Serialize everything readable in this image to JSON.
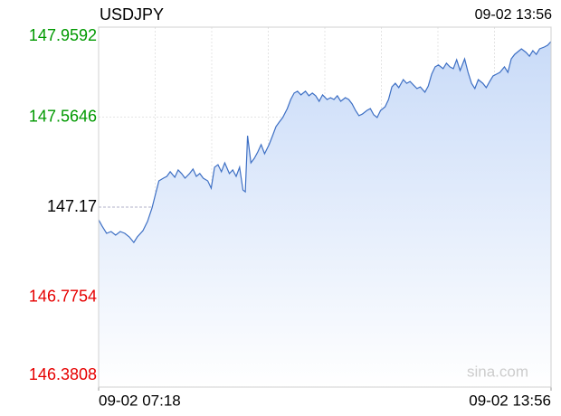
{
  "chart_data": {
    "type": "line",
    "title": "USDJPY",
    "timestamp": "09-02 13:56",
    "watermark": "sina.com",
    "xlim": [
      0,
      398
    ],
    "xticks": [
      {
        "value": 0,
        "label": "09-02 07:18"
      },
      {
        "value": 398,
        "label": "09-02 13:56"
      }
    ],
    "ylim": [
      146.3808,
      147.9592
    ],
    "yticks": [
      147.9592,
      147.5646,
      147.17,
      146.7754,
      146.3808
    ],
    "reference_value": 147.17,
    "up_color": "#009900",
    "down_color": "#e60000",
    "flat_color": "#000000",
    "grid": true,
    "x": [
      0,
      3,
      7,
      11,
      15,
      19,
      23,
      27,
      31,
      34,
      39,
      43,
      47,
      50,
      53,
      57,
      60,
      63,
      67,
      70,
      73,
      76,
      80,
      83,
      86,
      89,
      92,
      96,
      99,
      102,
      105,
      108,
      111,
      115,
      118,
      121,
      124,
      127,
      129,
      131,
      134,
      137,
      140,
      143,
      146,
      150,
      153,
      156,
      159,
      162,
      166,
      169,
      172,
      175,
      178,
      182,
      185,
      188,
      191,
      194,
      197,
      201,
      204,
      207,
      210,
      213,
      217,
      220,
      223,
      226,
      229,
      232,
      236,
      239,
      242,
      245,
      248,
      252,
      255,
      258,
      261,
      264,
      268,
      271,
      274,
      277,
      280,
      283,
      287,
      290,
      293,
      296,
      299,
      303,
      306,
      309,
      312,
      315,
      318,
      322,
      325,
      328,
      331,
      334,
      338,
      341,
      344,
      347,
      350,
      353,
      357,
      360,
      363,
      366,
      369,
      372,
      376,
      379,
      382,
      385,
      388,
      392,
      395,
      398
    ],
    "series": [
      {
        "color": "#3d6fc4",
        "fill": "#d6e4fb",
        "values": [
          147.114,
          147.087,
          147.055,
          147.063,
          147.047,
          147.063,
          147.055,
          147.039,
          147.015,
          147.039,
          147.067,
          147.107,
          147.166,
          147.226,
          147.285,
          147.297,
          147.305,
          147.325,
          147.301,
          147.333,
          147.317,
          147.297,
          147.317,
          147.337,
          147.305,
          147.317,
          147.297,
          147.285,
          147.253,
          147.345,
          147.356,
          147.325,
          147.364,
          147.317,
          147.333,
          147.305,
          147.345,
          147.245,
          147.237,
          147.483,
          147.364,
          147.384,
          147.412,
          147.444,
          147.404,
          147.444,
          147.483,
          147.523,
          147.543,
          147.563,
          147.602,
          147.642,
          147.67,
          147.678,
          147.662,
          147.678,
          147.658,
          147.67,
          147.658,
          147.634,
          147.662,
          147.642,
          147.65,
          147.642,
          147.658,
          147.634,
          147.65,
          147.642,
          147.622,
          147.594,
          147.571,
          147.578,
          147.594,
          147.602,
          147.575,
          147.563,
          147.594,
          147.61,
          147.642,
          147.697,
          147.713,
          147.694,
          147.729,
          147.713,
          147.721,
          147.705,
          147.69,
          147.697,
          147.674,
          147.701,
          147.753,
          147.785,
          147.793,
          147.777,
          147.801,
          147.785,
          147.777,
          147.816,
          147.769,
          147.82,
          147.761,
          147.713,
          147.69,
          147.729,
          147.713,
          147.694,
          147.721,
          147.745,
          147.753,
          147.761,
          147.785,
          147.761,
          147.82,
          147.84,
          147.852,
          147.864,
          147.848,
          147.832,
          147.856,
          147.84,
          147.864,
          147.872,
          147.88,
          147.896
        ]
      }
    ]
  }
}
